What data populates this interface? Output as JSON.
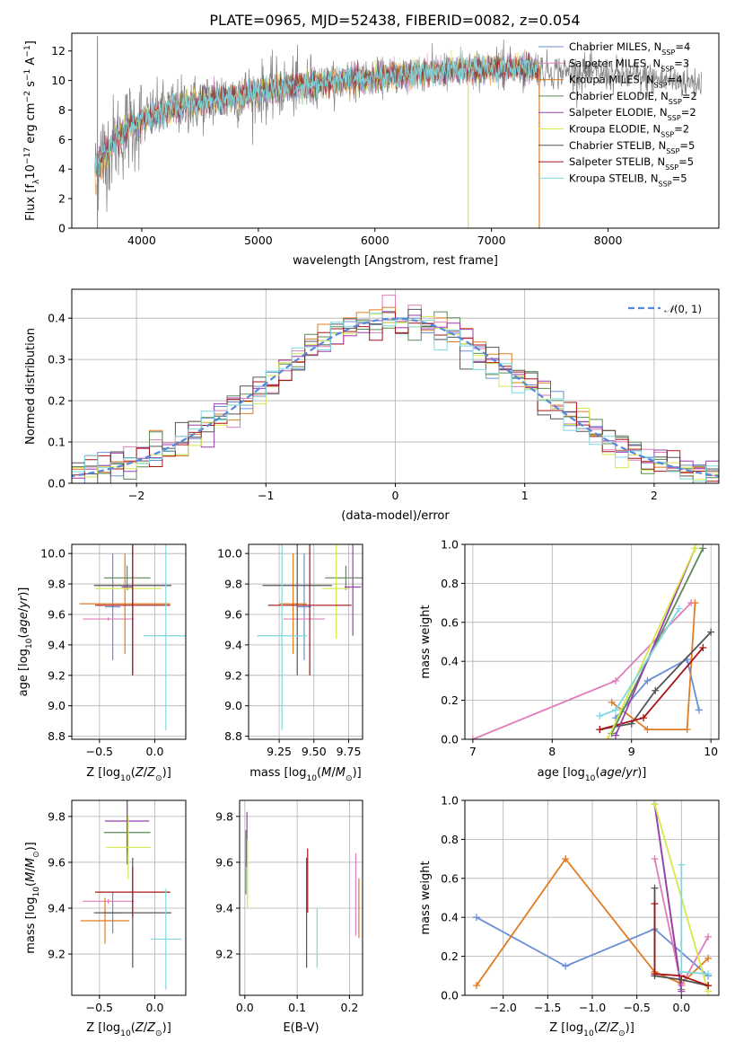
{
  "title": "PLATE=0965, MJD=52438, FIBERID=0082, z=0.054",
  "colors": [
    "#6a8fd6",
    "#e07db9",
    "#e07c23",
    "#5a8a56",
    "#9b3fae",
    "#d6e84a",
    "#555555",
    "#a81414",
    "#7fd8df"
  ],
  "legend_entries": [
    {
      "text": "Chabrier MILES, N",
      "sub": "SSP",
      "rest": "=4"
    },
    {
      "text": "Salpeter MILES, N",
      "sub": "SSP",
      "rest": "=3"
    },
    {
      "text": "Kroupa MILES, N",
      "sub": "SSP",
      "rest": "=4"
    },
    {
      "text": "Chabrier ELODIE, N",
      "sub": "SSP",
      "rest": "=2"
    },
    {
      "text": "Salpeter ELODIE, N",
      "sub": "SSP",
      "rest": "=2"
    },
    {
      "text": "Kroupa ELODIE, N",
      "sub": "SSP",
      "rest": "=2"
    },
    {
      "text": "Chabrier STELIB, N",
      "sub": "SSP",
      "rest": "=5"
    },
    {
      "text": "Salpeter STELIB, N",
      "sub": "SSP",
      "rest": "=5"
    },
    {
      "text": "Kroupa STELIB, N",
      "sub": "SSP",
      "rest": "=5"
    }
  ],
  "chart_data": [
    {
      "id": "spectrum",
      "type": "line",
      "xlabel": "wavelength [Angstrom, rest frame]",
      "ylabel": "Flux [fλ10⁻¹⁷ erg cm⁻² s⁻¹ A⁻¹]",
      "xlim": [
        3400,
        8950
      ],
      "ylim": [
        0,
        13.2
      ],
      "xticks": [
        4000,
        5000,
        6000,
        7000,
        8000
      ],
      "yticks": [
        0,
        2,
        4,
        6,
        8,
        10,
        12
      ],
      "grid": false,
      "legend": "upper right",
      "continuum_points": [
        [
          3600,
          4.2
        ],
        [
          3700,
          5.3
        ],
        [
          3800,
          6.2
        ],
        [
          3900,
          6.9
        ],
        [
          4000,
          7.3
        ],
        [
          4200,
          8.0
        ],
        [
          4500,
          8.5
        ],
        [
          4800,
          8.9
        ],
        [
          5000,
          9.2
        ],
        [
          5300,
          9.6
        ],
        [
          5600,
          9.9
        ],
        [
          6000,
          10.2
        ],
        [
          6400,
          10.5
        ],
        [
          6800,
          10.7
        ],
        [
          7200,
          10.9
        ],
        [
          7600,
          10.6
        ],
        [
          8000,
          10.4
        ],
        [
          8400,
          10.1
        ],
        [
          8700,
          9.9
        ]
      ],
      "model_xrange": [
        3600,
        7400
      ],
      "data_xrange": [
        3600,
        8800
      ]
    },
    {
      "id": "residuals",
      "type": "bar",
      "xlabel": "(data-model)/error",
      "ylabel": "Normed distribution",
      "xlim": [
        -2.5,
        2.5
      ],
      "ylim": [
        0,
        0.47
      ],
      "xticks": [
        -2,
        -1,
        0,
        1,
        2
      ],
      "yticks": [
        0.0,
        0.1,
        0.2,
        0.3,
        0.4
      ],
      "grid": true,
      "legend": "upper right",
      "reference_label": "N(0,1)",
      "bin_width": 0.1
    },
    {
      "id": "age-vs-Z",
      "type": "scatter",
      "xlabel": "Z [log10(Z/Z⊙)]",
      "ylabel": "age [log10(age/yr)]",
      "xlim": [
        -0.75,
        0.28
      ],
      "ylim": [
        8.78,
        10.06
      ],
      "xticks": [
        -0.5,
        0.0
      ],
      "yticks": [
        8.8,
        9.0,
        9.2,
        9.4,
        9.6,
        9.8,
        10.0
      ],
      "grid": true,
      "points": [
        {
          "x": -0.38,
          "xerr": 0.07,
          "y": 9.65,
          "yerr": 0.35,
          "c": 0
        },
        {
          "x": -0.42,
          "xerr": 0.23,
          "y": 9.57,
          "yerr": 0.01,
          "c": 1
        },
        {
          "x": -0.27,
          "xerr": 0.41,
          "y": 9.67,
          "yerr": 0.33,
          "c": 2
        },
        {
          "x": -0.25,
          "xerr": 0.21,
          "y": 9.84,
          "yerr": 0.08,
          "c": 3
        },
        {
          "x": -0.25,
          "xerr": 0.05,
          "y": 9.78,
          "yerr": 0.01,
          "c": 4
        },
        {
          "x": -0.24,
          "xerr": 0.3,
          "y": 9.77,
          "yerr": 0.01,
          "c": 5
        },
        {
          "x": -0.2,
          "xerr": 0.35,
          "y": 9.79,
          "yerr": 0.59,
          "c": 6
        },
        {
          "x": -0.2,
          "xerr": 0.34,
          "y": 9.66,
          "yerr": 0.46,
          "c": 7
        },
        {
          "x": 0.1,
          "xerr": 0.2,
          "y": 9.46,
          "yerr": 0.62,
          "c": 8
        }
      ]
    },
    {
      "id": "age-vs-mass",
      "type": "scatter",
      "xlabel": "mass [log10(M/M⊙)]",
      "ylabel": "",
      "xlim": [
        9.03,
        9.85
      ],
      "ylim": [
        8.78,
        10.06
      ],
      "xticks": [
        9.25,
        9.5,
        9.75
      ],
      "yticks": [
        8.8,
        9.0,
        9.2,
        9.4,
        9.6,
        9.8,
        10.0
      ],
      "grid": true,
      "points": [
        {
          "x": 9.43,
          "xerr": 0.05,
          "y": 9.65,
          "yerr": 0.35,
          "c": 0
        },
        {
          "x": 9.43,
          "xerr": 0.15,
          "y": 9.57,
          "yerr": 0.01,
          "c": 1
        },
        {
          "x": 9.35,
          "xerr": 0.1,
          "y": 9.67,
          "yerr": 0.33,
          "c": 2
        },
        {
          "x": 9.73,
          "xerr": 0.15,
          "y": 9.84,
          "yerr": 0.08,
          "c": 3
        },
        {
          "x": 9.78,
          "xerr": 0.06,
          "y": 9.78,
          "yerr": 0.32,
          "c": 4
        },
        {
          "x": 9.66,
          "xerr": 0.1,
          "y": 9.77,
          "yerr": 0.33,
          "c": 5
        },
        {
          "x": 9.38,
          "xerr": 0.25,
          "y": 9.79,
          "yerr": 0.59,
          "c": 6
        },
        {
          "x": 9.47,
          "xerr": 0.3,
          "y": 9.66,
          "yerr": 0.46,
          "c": 7
        },
        {
          "x": 9.27,
          "xerr": 0.18,
          "y": 9.46,
          "yerr": 0.62,
          "c": 8
        }
      ]
    },
    {
      "id": "weight-vs-age",
      "type": "line",
      "xlabel": "age [log10(age/yr)]",
      "ylabel": "mass weight",
      "xlim": [
        6.9,
        10.1
      ],
      "ylim": [
        0,
        1.0
      ],
      "xticks": [
        7,
        8,
        9,
        10
      ],
      "yticks": [
        0.0,
        0.2,
        0.4,
        0.6,
        0.8,
        1.0
      ],
      "grid": true,
      "series": [
        {
          "c": 1,
          "x": [
            7.0,
            8.8,
            9.75
          ],
          "y": [
            0.0,
            0.3,
            0.7
          ]
        },
        {
          "c": 0,
          "x": [
            8.8,
            9.2,
            9.7,
            9.85
          ],
          "y": [
            0.11,
            0.3,
            0.41,
            0.15
          ]
        },
        {
          "c": 2,
          "x": [
            8.75,
            9.2,
            9.7,
            9.8
          ],
          "y": [
            0.19,
            0.05,
            0.05,
            0.7
          ]
        },
        {
          "c": 6,
          "x": [
            8.6,
            9.0,
            9.3,
            10.0
          ],
          "y": [
            0.05,
            0.08,
            0.25,
            0.55
          ]
        },
        {
          "c": 7,
          "x": [
            8.6,
            9.15,
            9.9
          ],
          "y": [
            0.05,
            0.11,
            0.47
          ]
        },
        {
          "c": 3,
          "x": [
            8.75,
            9.9
          ],
          "y": [
            0.03,
            0.98
          ]
        },
        {
          "c": 4,
          "x": [
            8.8,
            9.8
          ],
          "y": [
            0.02,
            0.98
          ]
        },
        {
          "c": 5,
          "x": [
            8.7,
            9.8
          ],
          "y": [
            0.0,
            0.98
          ]
        },
        {
          "c": 8,
          "x": [
            8.6,
            8.8,
            9.6
          ],
          "y": [
            0.12,
            0.15,
            0.67
          ]
        }
      ]
    },
    {
      "id": "mass-vs-Z",
      "type": "scatter",
      "xlabel": "Z [log10(Z/Z⊙)]",
      "ylabel": "mass [log10(M/M⊙)]",
      "xlim": [
        -0.75,
        0.28
      ],
      "ylim": [
        9.02,
        9.87
      ],
      "xticks": [
        -0.5,
        0.0
      ],
      "yticks": [
        9.2,
        9.4,
        9.6,
        9.8
      ],
      "grid": true,
      "points": [
        {
          "x": -0.38,
          "xerr": 0.07,
          "y": 9.38,
          "yerr": 0.09,
          "c": 0
        },
        {
          "x": -0.42,
          "xerr": 0.23,
          "y": 9.43,
          "yerr": 0.01,
          "c": 1
        },
        {
          "x": -0.45,
          "xerr": 0.22,
          "y": 9.345,
          "yerr": 0.1,
          "c": 2
        },
        {
          "x": -0.25,
          "xerr": 0.21,
          "y": 9.73,
          "yerr": 0.14,
          "c": 3
        },
        {
          "x": -0.25,
          "xerr": 0.2,
          "y": 9.78,
          "yerr": 0.14,
          "c": 4
        },
        {
          "x": -0.24,
          "xerr": 0.2,
          "y": 9.665,
          "yerr": 0.14,
          "c": 5
        },
        {
          "x": -0.2,
          "xerr": 0.35,
          "y": 9.38,
          "yerr": 0.24,
          "c": 6
        },
        {
          "x": -0.2,
          "xerr": 0.34,
          "y": 9.47,
          "yerr": 0.11,
          "c": 7
        },
        {
          "x": 0.1,
          "xerr": 0.14,
          "y": 9.265,
          "yerr": 0.22,
          "c": 8
        }
      ]
    },
    {
      "id": "mass-vs-ebv",
      "type": "scatter",
      "xlabel": "E(B-V)",
      "ylabel": "",
      "xlim": [
        -0.01,
        0.225
      ],
      "ylim": [
        9.02,
        9.87
      ],
      "xticks": [
        0.0,
        0.1,
        0.2
      ],
      "yticks": [
        9.2,
        9.4,
        9.6,
        9.8
      ],
      "grid": true,
      "points": [
        {
          "x": 0.002,
          "y": 9.6,
          "yerr": 0.14,
          "c": 3
        },
        {
          "x": 0.004,
          "y": 9.7,
          "yerr": 0.12,
          "c": 4
        },
        {
          "x": 0.005,
          "y": 9.55,
          "yerr": 0.15,
          "c": 5
        },
        {
          "x": 0.118,
          "y": 9.38,
          "yerr": 0.24,
          "c": 6
        },
        {
          "x": 0.12,
          "y": 9.52,
          "yerr": 0.14,
          "c": 7
        },
        {
          "x": 0.138,
          "y": 9.27,
          "yerr": 0.13,
          "c": 8
        },
        {
          "x": 0.212,
          "y": 9.46,
          "yerr": 0.18,
          "c": 1
        },
        {
          "x": 0.218,
          "y": 9.4,
          "yerr": 0.13,
          "c": 2
        }
      ]
    },
    {
      "id": "weight-vs-Z",
      "type": "line",
      "xlabel": "Z [log10(Z/Z⊙)]",
      "ylabel": "mass weight",
      "xlim": [
        -2.43,
        0.42
      ],
      "ylim": [
        0,
        1.0
      ],
      "xticks": [
        -2.0,
        -1.5,
        -1.0,
        -0.5,
        0.0
      ],
      "yticks": [
        0.0,
        0.2,
        0.4,
        0.6,
        0.8,
        1.0
      ],
      "grid": true,
      "series": [
        {
          "c": 0,
          "x": [
            -2.3,
            -1.3,
            -0.3,
            0.3
          ],
          "y": [
            0.4,
            0.15,
            0.34,
            0.1
          ]
        },
        {
          "c": 2,
          "x": [
            -2.3,
            -1.3,
            -0.3,
            0.0,
            0.3
          ],
          "y": [
            0.05,
            0.7,
            0.12,
            0.06,
            0.19
          ]
        },
        {
          "c": 1,
          "x": [
            -0.3,
            0.0,
            0.3
          ],
          "y": [
            0.7,
            0.05,
            0.3
          ]
        },
        {
          "c": 3,
          "x": [
            -0.3,
            0.0
          ],
          "y": [
            0.98,
            0.03
          ]
        },
        {
          "c": 4,
          "x": [
            -0.3,
            0.0
          ],
          "y": [
            0.98,
            0.02
          ]
        },
        {
          "c": 5,
          "x": [
            -0.3,
            0.3
          ],
          "y": [
            0.98,
            0.02
          ]
        },
        {
          "c": 6,
          "x": [
            -0.3,
            -0.3,
            0.0,
            0.3
          ],
          "y": [
            0.55,
            0.1,
            0.08,
            0.05
          ]
        },
        {
          "c": 7,
          "x": [
            -0.3,
            -0.3,
            0.0,
            0.3
          ],
          "y": [
            0.47,
            0.11,
            0.1,
            0.05
          ]
        },
        {
          "c": 8,
          "x": [
            0.0,
            0.0,
            0.3
          ],
          "y": [
            0.67,
            0.12,
            0.11
          ]
        }
      ]
    }
  ]
}
